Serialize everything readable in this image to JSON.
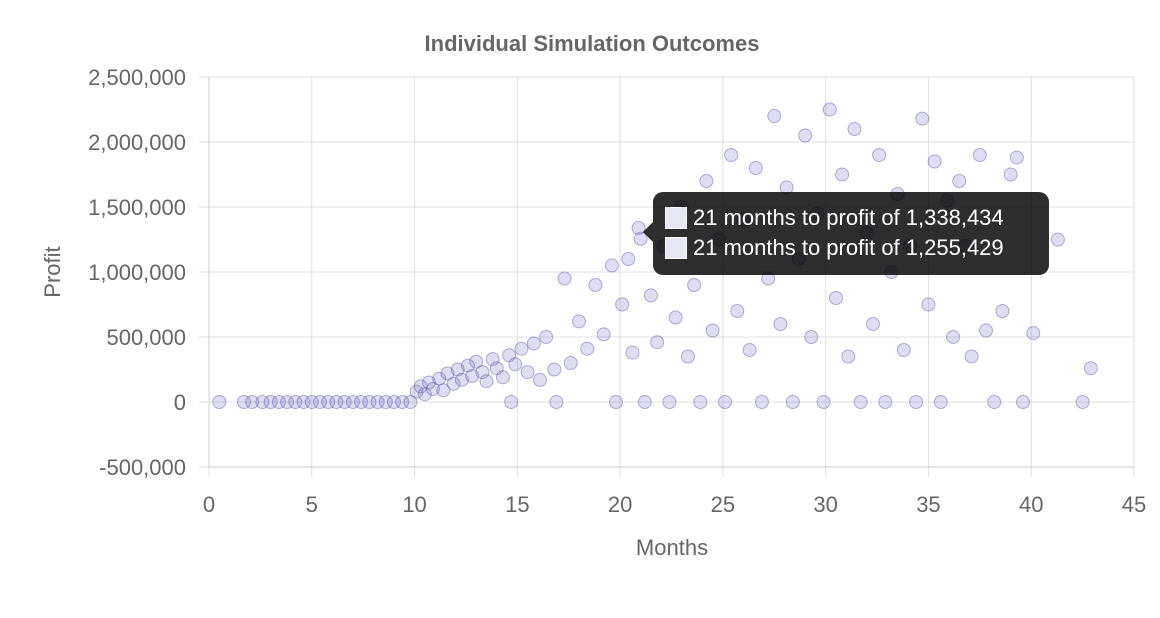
{
  "chart_data": {
    "type": "scatter",
    "title": "Individual Simulation Outcomes",
    "xlabel": "Months",
    "ylabel": "Profit",
    "xlim": [
      0,
      45
    ],
    "ylim": [
      -500000,
      2500000
    ],
    "x_ticks": [
      "0",
      "5",
      "10",
      "15",
      "20",
      "25",
      "30",
      "35",
      "40",
      "45"
    ],
    "y_ticks": [
      "2,500,000",
      "2,000,000",
      "1,500,000",
      "1,000,000",
      "500,000",
      "0",
      "-500,000"
    ],
    "grid": true,
    "legend": "none",
    "point_color": "#7b79c7",
    "point_border": "#5a56a0",
    "series": [
      {
        "points": [
          [
            0.5,
            0
          ],
          [
            1.7,
            0
          ],
          [
            2.1,
            0
          ],
          [
            2.6,
            0
          ],
          [
            3.0,
            0
          ],
          [
            3.4,
            0
          ],
          [
            3.8,
            0
          ],
          [
            4.2,
            0
          ],
          [
            4.6,
            0
          ],
          [
            5.0,
            0
          ],
          [
            5.4,
            0
          ],
          [
            5.8,
            0
          ],
          [
            6.2,
            0
          ],
          [
            6.6,
            0
          ],
          [
            7.0,
            0
          ],
          [
            7.4,
            0
          ],
          [
            7.8,
            0
          ],
          [
            8.2,
            0
          ],
          [
            8.6,
            0
          ],
          [
            9.0,
            0
          ],
          [
            9.4,
            0
          ],
          [
            9.8,
            0
          ],
          [
            10.1,
            80000
          ],
          [
            10.3,
            120000
          ],
          [
            10.5,
            60000
          ],
          [
            10.7,
            150000
          ],
          [
            10.9,
            100000
          ],
          [
            11.2,
            180000
          ],
          [
            11.4,
            90000
          ],
          [
            11.6,
            220000
          ],
          [
            11.9,
            140000
          ],
          [
            12.1,
            250000
          ],
          [
            12.3,
            170000
          ],
          [
            12.6,
            280000
          ],
          [
            12.8,
            200000
          ],
          [
            13.0,
            310000
          ],
          [
            13.3,
            230000
          ],
          [
            13.5,
            160000
          ],
          [
            13.8,
            330000
          ],
          [
            14.0,
            260000
          ],
          [
            14.3,
            190000
          ],
          [
            14.6,
            360000
          ],
          [
            14.9,
            290000
          ],
          [
            15.2,
            410000
          ],
          [
            15.5,
            230000
          ],
          [
            15.8,
            450000
          ],
          [
            16.1,
            170000
          ],
          [
            16.4,
            500000
          ],
          [
            16.8,
            250000
          ],
          [
            14.7,
            0
          ],
          [
            16.9,
            0
          ],
          [
            17.3,
            950000
          ],
          [
            17.6,
            300000
          ],
          [
            18.0,
            620000
          ],
          [
            18.4,
            410000
          ],
          [
            18.8,
            900000
          ],
          [
            19.2,
            520000
          ],
          [
            19.6,
            1050000
          ],
          [
            19.8,
            0
          ],
          [
            20.1,
            750000
          ],
          [
            20.4,
            1100000
          ],
          [
            20.6,
            380000
          ],
          [
            20.9,
            1338434
          ],
          [
            21.0,
            1255429
          ],
          [
            21.2,
            0
          ],
          [
            21.5,
            820000
          ],
          [
            21.8,
            460000
          ],
          [
            22.1,
            1200000
          ],
          [
            22.4,
            0
          ],
          [
            22.7,
            650000
          ],
          [
            23.0,
            1500000
          ],
          [
            23.3,
            350000
          ],
          [
            23.6,
            900000
          ],
          [
            23.9,
            0
          ],
          [
            24.2,
            1700000
          ],
          [
            24.5,
            550000
          ],
          [
            24.8,
            1250000
          ],
          [
            25.1,
            0
          ],
          [
            25.4,
            1900000
          ],
          [
            25.7,
            700000
          ],
          [
            26.0,
            1400000
          ],
          [
            26.3,
            400000
          ],
          [
            26.6,
            1800000
          ],
          [
            26.9,
            0
          ],
          [
            27.2,
            950000
          ],
          [
            27.5,
            2200000
          ],
          [
            27.8,
            600000
          ],
          [
            28.1,
            1650000
          ],
          [
            28.4,
            0
          ],
          [
            28.7,
            1100000
          ],
          [
            29.0,
            2050000
          ],
          [
            29.3,
            500000
          ],
          [
            29.6,
            1450000
          ],
          [
            29.9,
            0
          ],
          [
            30.2,
            2250000
          ],
          [
            30.5,
            800000
          ],
          [
            30.8,
            1750000
          ],
          [
            31.1,
            350000
          ],
          [
            31.4,
            2100000
          ],
          [
            31.7,
            0
          ],
          [
            32.0,
            1300000
          ],
          [
            32.3,
            600000
          ],
          [
            32.6,
            1900000
          ],
          [
            32.9,
            0
          ],
          [
            33.2,
            1000000
          ],
          [
            33.5,
            1600000
          ],
          [
            33.8,
            400000
          ],
          [
            34.1,
            1200000
          ],
          [
            34.4,
            0
          ],
          [
            34.7,
            2180000
          ],
          [
            35.0,
            750000
          ],
          [
            35.3,
            1850000
          ],
          [
            35.6,
            0
          ],
          [
            35.9,
            1550000
          ],
          [
            36.2,
            500000
          ],
          [
            36.5,
            1700000
          ],
          [
            36.8,
            1200000
          ],
          [
            37.1,
            350000
          ],
          [
            37.5,
            1900000
          ],
          [
            37.8,
            550000
          ],
          [
            38.2,
            0
          ],
          [
            38.6,
            700000
          ],
          [
            39.0,
            1750000
          ],
          [
            39.3,
            1880000
          ],
          [
            39.6,
            0
          ],
          [
            40.1,
            530000
          ],
          [
            41.3,
            1250000
          ],
          [
            42.5,
            0
          ],
          [
            42.9,
            260000
          ]
        ]
      }
    ]
  },
  "tooltip": {
    "lines": [
      "21 months to profit of 1,338,434",
      "21 months to profit of 1,255,429"
    ]
  }
}
